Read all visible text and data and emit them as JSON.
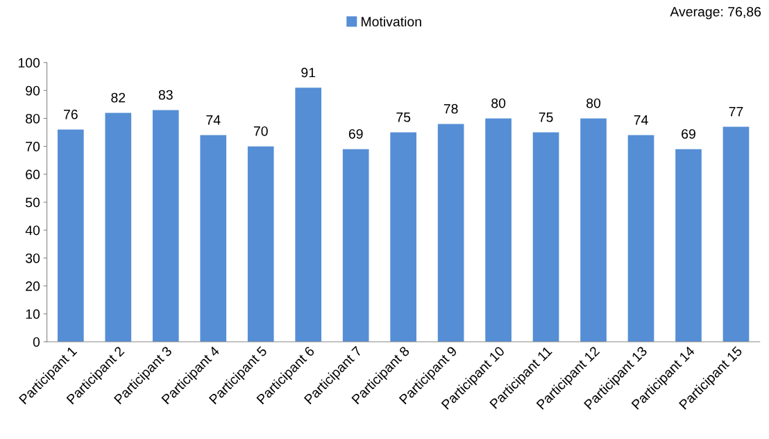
{
  "chart_data": {
    "type": "bar",
    "categories": [
      "Participant 1",
      "Participant 2",
      "Participant 3",
      "Participant 4",
      "Participant 5",
      "Participant 6",
      "Participant 7",
      "Participant 8",
      "Participant 9",
      "Participant 10",
      "Participant 11",
      "Participant 12",
      "Participant 13",
      "Participant 14",
      "Participant 15"
    ],
    "series": [
      {
        "name": "Motivation",
        "color": "#558ed5",
        "values": [
          76,
          82,
          83,
          74,
          70,
          91,
          69,
          75,
          78,
          80,
          75,
          80,
          74,
          69,
          77
        ]
      }
    ],
    "ylim": [
      0,
      100
    ],
    "yticks": [
      0,
      10,
      20,
      30,
      40,
      50,
      60,
      70,
      80,
      90,
      100
    ],
    "data_labels": true,
    "grid": false,
    "legend": "top",
    "annotations": [
      "Average: 76,86"
    ]
  }
}
